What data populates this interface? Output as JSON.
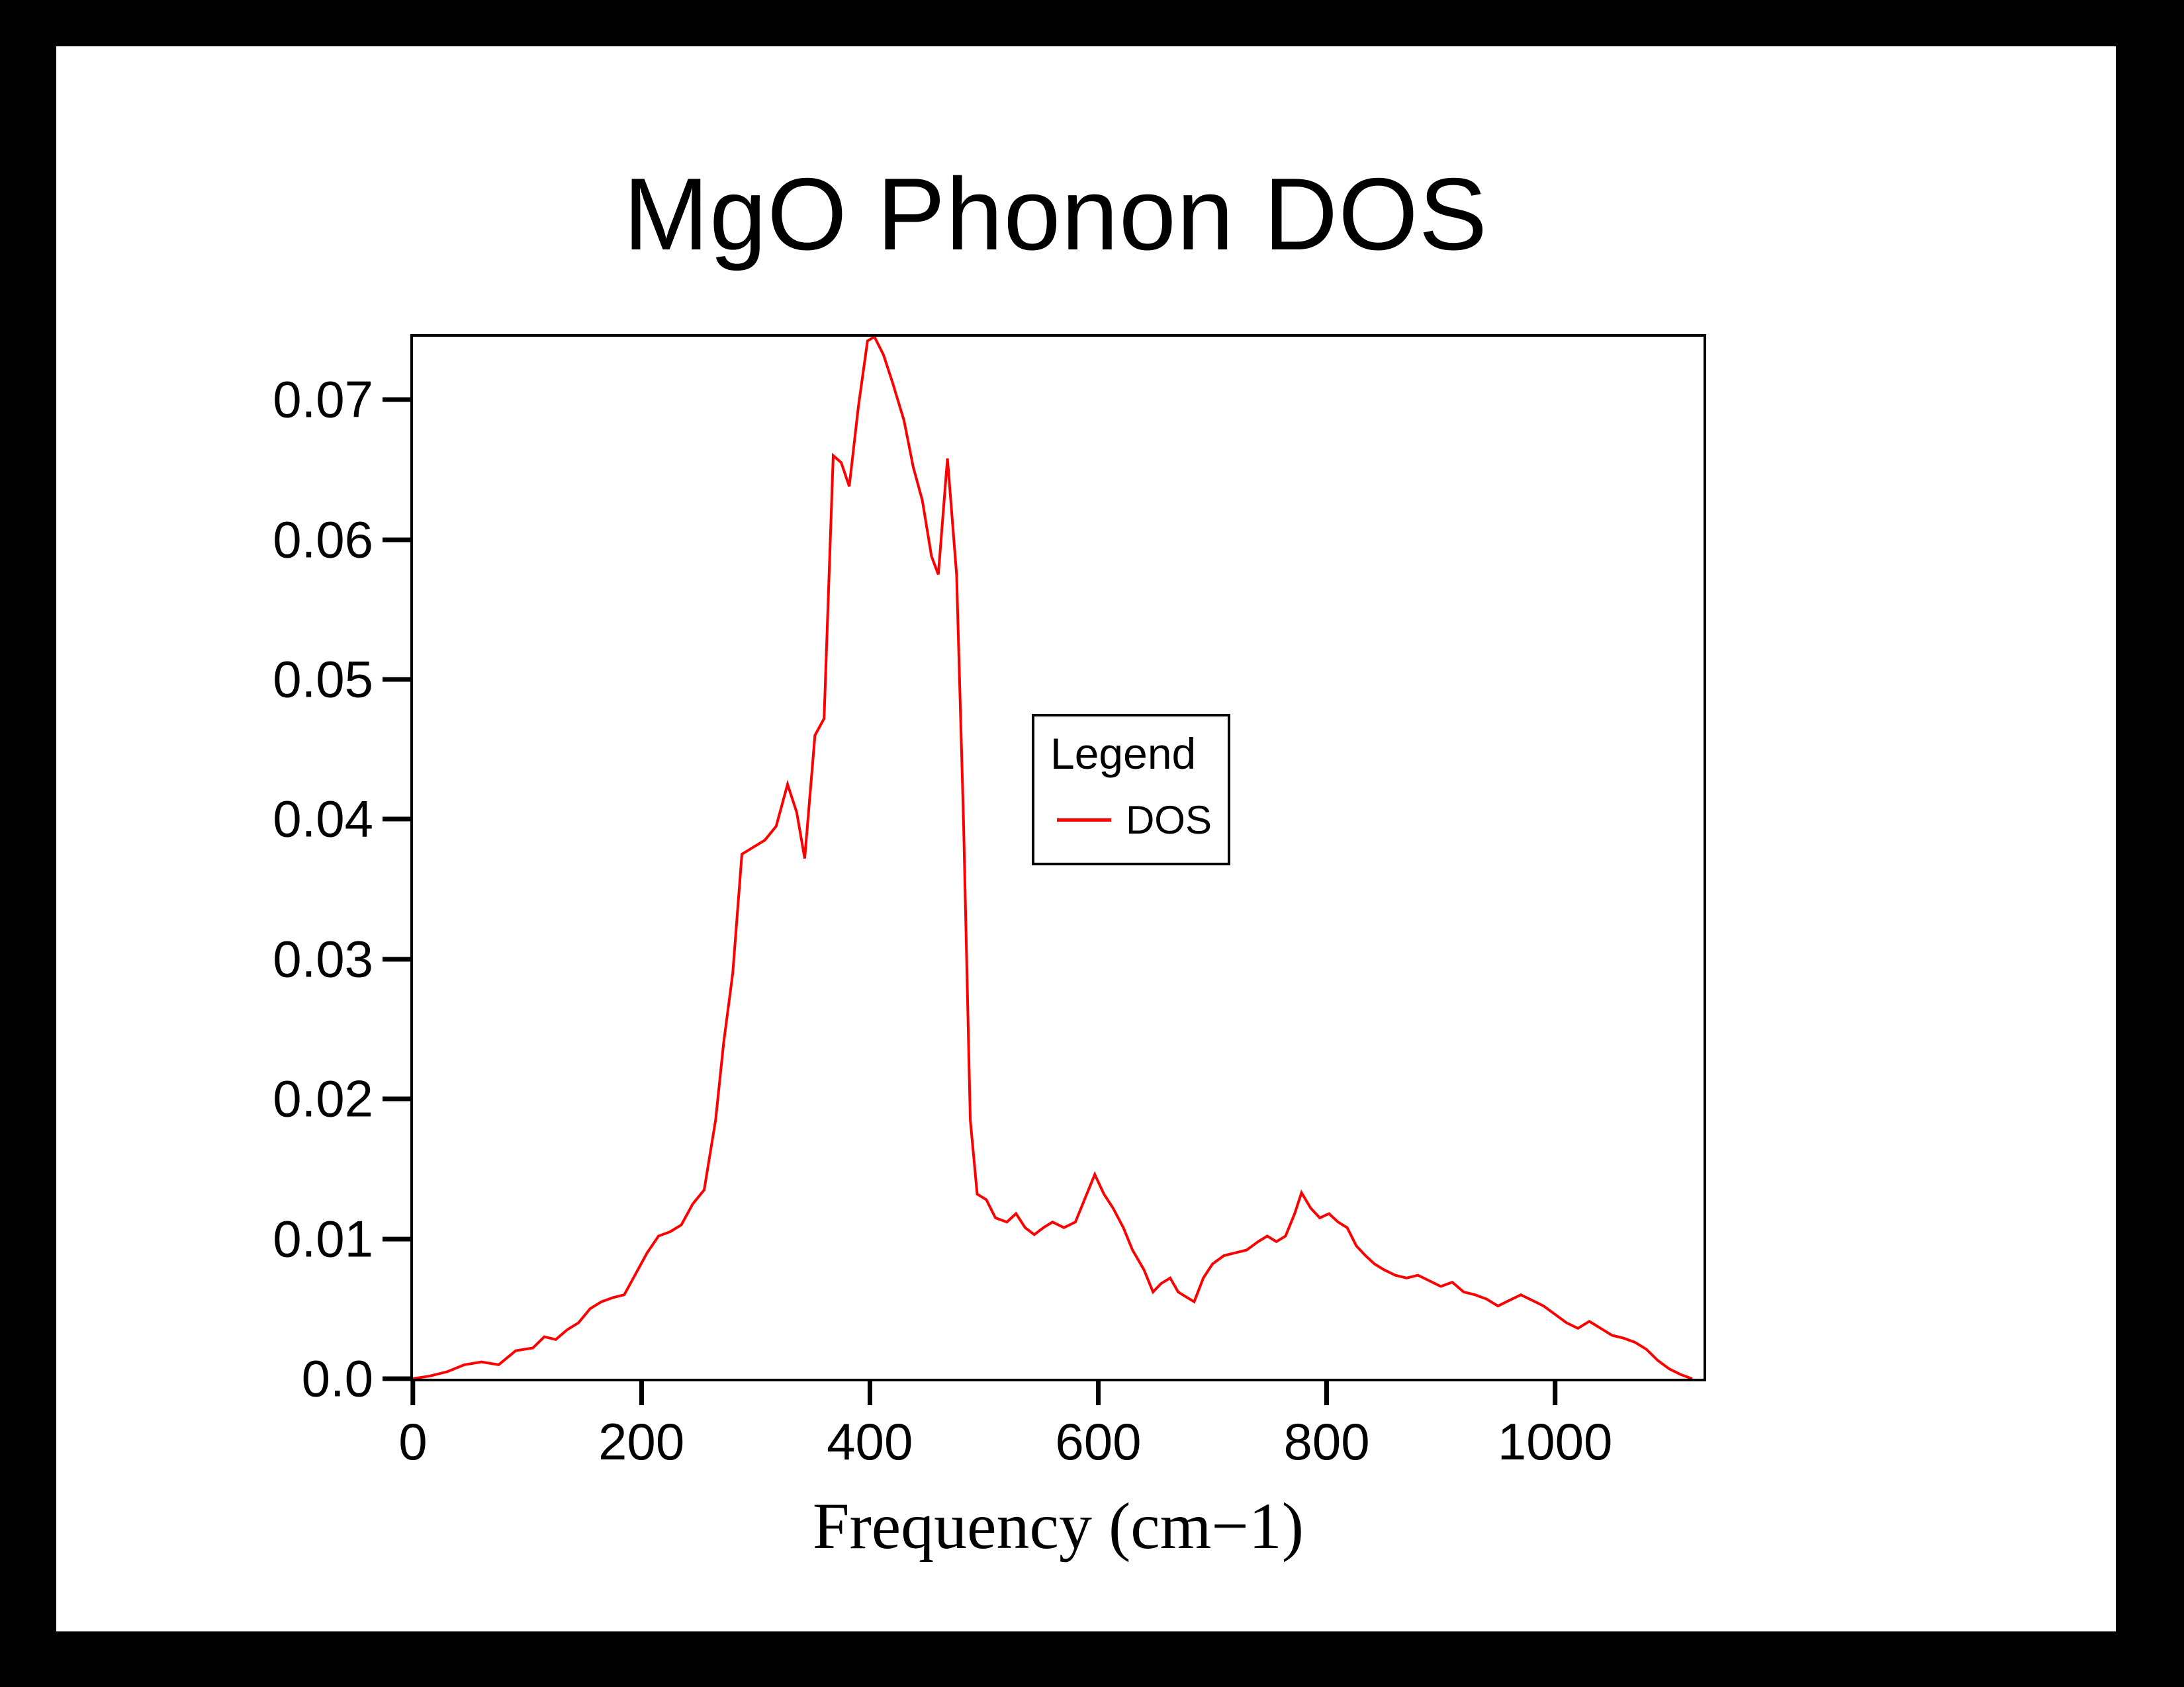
{
  "page": {
    "background": "#000000",
    "title": "MgO Phonon DOS"
  },
  "chart_data": {
    "type": "line",
    "title": "MgO Phonon DOS",
    "xlabel": "Frequency (cm−1)",
    "ylabel": "",
    "xlim": [
      0,
      1130
    ],
    "ylim": [
      0,
      0.0745
    ],
    "grid": false,
    "x_ticks": [
      "0",
      "200",
      "400",
      "600",
      "800",
      "1000"
    ],
    "y_ticks": [
      "0.0",
      "0.01",
      "0.02",
      "0.03",
      "0.04",
      "0.05",
      "0.06",
      "0.07"
    ],
    "legend": {
      "title": "Legend",
      "position": "inside-right",
      "entries": [
        {
          "label": "DOS",
          "color": "#ff0000"
        }
      ]
    },
    "series": [
      {
        "name": "DOS",
        "color": "#ff0000",
        "points": [
          [
            0,
            0
          ],
          [
            15,
            0.0002
          ],
          [
            30,
            0.0005
          ],
          [
            45,
            0.001
          ],
          [
            60,
            0.0012
          ],
          [
            75,
            0.001
          ],
          [
            90,
            0.002
          ],
          [
            105,
            0.0022
          ],
          [
            115,
            0.003
          ],
          [
            125,
            0.0028
          ],
          [
            135,
            0.0035
          ],
          [
            145,
            0.004
          ],
          [
            155,
            0.005
          ],
          [
            165,
            0.0055
          ],
          [
            175,
            0.0058
          ],
          [
            185,
            0.006
          ],
          [
            195,
            0.0075
          ],
          [
            205,
            0.009
          ],
          [
            215,
            0.0102
          ],
          [
            225,
            0.0105
          ],
          [
            235,
            0.011
          ],
          [
            245,
            0.0125
          ],
          [
            255,
            0.0135
          ],
          [
            265,
            0.0185
          ],
          [
            272,
            0.024
          ],
          [
            280,
            0.029
          ],
          [
            288,
            0.0375
          ],
          [
            298,
            0.038
          ],
          [
            308,
            0.0385
          ],
          [
            318,
            0.0395
          ],
          [
            328,
            0.0425
          ],
          [
            336,
            0.0405
          ],
          [
            343,
            0.0372
          ],
          [
            352,
            0.046
          ],
          [
            360,
            0.0472
          ],
          [
            368,
            0.066
          ],
          [
            375,
            0.0655
          ],
          [
            382,
            0.0638
          ],
          [
            390,
            0.0695
          ],
          [
            398,
            0.0742
          ],
          [
            404,
            0.0745
          ],
          [
            412,
            0.0732
          ],
          [
            420,
            0.0712
          ],
          [
            430,
            0.0685
          ],
          [
            438,
            0.0652
          ],
          [
            446,
            0.0628
          ],
          [
            454,
            0.0588
          ],
          [
            460,
            0.0575
          ],
          [
            468,
            0.0658
          ],
          [
            476,
            0.0575
          ],
          [
            482,
            0.04
          ],
          [
            488,
            0.0185
          ],
          [
            494,
            0.0132
          ],
          [
            502,
            0.0128
          ],
          [
            510,
            0.0115
          ],
          [
            520,
            0.0112
          ],
          [
            528,
            0.0118
          ],
          [
            536,
            0.0108
          ],
          [
            544,
            0.0103
          ],
          [
            552,
            0.0108
          ],
          [
            560,
            0.0112
          ],
          [
            570,
            0.0108
          ],
          [
            580,
            0.0112
          ],
          [
            590,
            0.0132
          ],
          [
            597,
            0.0146
          ],
          [
            605,
            0.0132
          ],
          [
            613,
            0.0122
          ],
          [
            622,
            0.0108
          ],
          [
            630,
            0.0092
          ],
          [
            640,
            0.0078
          ],
          [
            648,
            0.0062
          ],
          [
            655,
            0.0068
          ],
          [
            663,
            0.0072
          ],
          [
            670,
            0.0062
          ],
          [
            678,
            0.0058
          ],
          [
            684,
            0.0055
          ],
          [
            692,
            0.0072
          ],
          [
            700,
            0.0082
          ],
          [
            710,
            0.0088
          ],
          [
            720,
            0.009
          ],
          [
            730,
            0.0092
          ],
          [
            740,
            0.0098
          ],
          [
            748,
            0.0102
          ],
          [
            756,
            0.0098
          ],
          [
            764,
            0.0102
          ],
          [
            772,
            0.0118
          ],
          [
            778,
            0.0133
          ],
          [
            786,
            0.0122
          ],
          [
            794,
            0.0115
          ],
          [
            802,
            0.0118
          ],
          [
            810,
            0.0112
          ],
          [
            818,
            0.0108
          ],
          [
            826,
            0.0095
          ],
          [
            834,
            0.0088
          ],
          [
            842,
            0.0082
          ],
          [
            850,
            0.0078
          ],
          [
            860,
            0.0074
          ],
          [
            870,
            0.0072
          ],
          [
            880,
            0.0074
          ],
          [
            890,
            0.007
          ],
          [
            900,
            0.0066
          ],
          [
            910,
            0.0069
          ],
          [
            920,
            0.0062
          ],
          [
            930,
            0.006
          ],
          [
            940,
            0.0057
          ],
          [
            950,
            0.0052
          ],
          [
            960,
            0.0056
          ],
          [
            970,
            0.006
          ],
          [
            980,
            0.0056
          ],
          [
            990,
            0.0052
          ],
          [
            1000,
            0.0046
          ],
          [
            1010,
            0.004
          ],
          [
            1020,
            0.0036
          ],
          [
            1030,
            0.0041
          ],
          [
            1040,
            0.0036
          ],
          [
            1050,
            0.0031
          ],
          [
            1060,
            0.0029
          ],
          [
            1070,
            0.0026
          ],
          [
            1080,
            0.0021
          ],
          [
            1090,
            0.0013
          ],
          [
            1100,
            0.0007
          ],
          [
            1110,
            0.0003
          ],
          [
            1120,
            0
          ]
        ]
      }
    ]
  }
}
